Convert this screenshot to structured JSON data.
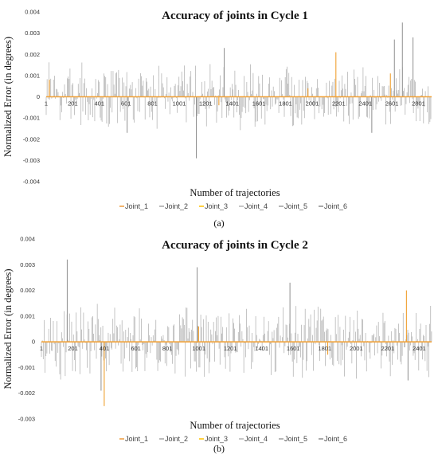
{
  "chart_data": [
    {
      "type": "line",
      "caption": "(a)",
      "title": "Accuracy of joints in Cycle 1",
      "xlabel": "Number of trajectories",
      "ylabel": "Normalized Error (in degrees)",
      "ylim": [
        -0.004,
        0.004
      ],
      "yticks": [
        0.004,
        0.003,
        0.002,
        0.001,
        0,
        -0.001,
        -0.002,
        -0.003,
        -0.004
      ],
      "ytick_labels": [
        "0.004",
        "0.003",
        "0.002",
        "0.001",
        "0",
        "-0.001",
        "-0.002",
        "-0.003",
        "-0.004"
      ],
      "xlim": [
        1,
        2900
      ],
      "xticks": [
        1,
        201,
        401,
        601,
        801,
        1001,
        1201,
        1401,
        1601,
        1801,
        2001,
        2201,
        2401,
        2601,
        2801
      ],
      "xtick_labels": [
        "1",
        "201",
        "401",
        "601",
        "801",
        "1001",
        "1201",
        "1401",
        "1601",
        "1801",
        "2001",
        "2201",
        "2401",
        "2601",
        "2801"
      ],
      "noise_amplitude": 0.0017,
      "series": [
        {
          "name": "Joint_1",
          "color": "#ed9b3a"
        },
        {
          "name": "Joint_2",
          "color": "#a6a6a6"
        },
        {
          "name": "Joint_3",
          "color": "#ffc000"
        },
        {
          "name": "Joint_4",
          "color": "#b4b4b4"
        },
        {
          "name": "Joint_5",
          "color": "#9d9d9d"
        },
        {
          "name": "Joint_6",
          "color": "#8c8c8c"
        }
      ],
      "gray_spikes": [
        {
          "x": 1130,
          "y": -0.0029
        },
        {
          "x": 1340,
          "y": 0.0023
        },
        {
          "x": 2620,
          "y": 0.0027
        },
        {
          "x": 2680,
          "y": 0.0035
        },
        {
          "x": 2760,
          "y": 0.0028
        },
        {
          "x": 610,
          "y": -0.0017
        },
        {
          "x": 2450,
          "y": -0.0017
        }
      ],
      "orange_spikes": [
        {
          "x": 25,
          "y": 0.0008
        },
        {
          "x": 2180,
          "y": 0.0021
        },
        {
          "x": 2590,
          "y": 0.0011
        },
        {
          "x": 1300,
          "y": -0.0004
        },
        {
          "x": 1970,
          "y": 0.0004
        }
      ]
    },
    {
      "type": "line",
      "caption": "(b)",
      "title": "Accuracy of joints in Cycle 2",
      "xlabel": "Number of trajectories",
      "ylabel": "Normalized Error (in degrees)",
      "ylim": [
        -0.003,
        0.004
      ],
      "yticks": [
        0.004,
        0.003,
        0.002,
        0.001,
        0,
        -0.001,
        -0.002,
        -0.003
      ],
      "ytick_labels": [
        "0.004",
        "0.003",
        "0.002",
        "0.001",
        "0",
        "-0.001",
        "-0.002",
        "-0.003"
      ],
      "xlim": [
        1,
        2480
      ],
      "xticks": [
        1,
        201,
        401,
        601,
        801,
        1001,
        1201,
        1401,
        1601,
        1801,
        2001,
        2201,
        2401
      ],
      "xtick_labels": [
        "1",
        "201",
        "401",
        "601",
        "801",
        "1001",
        "1201",
        "1401",
        "1601",
        "1801",
        "2001",
        "2201",
        "2401"
      ],
      "noise_amplitude": 0.0016,
      "series": [
        {
          "name": "Joint_1",
          "color": "#ed9b3a"
        },
        {
          "name": "Joint_2",
          "color": "#a6a6a6"
        },
        {
          "name": "Joint_3",
          "color": "#ffc000"
        },
        {
          "name": "Joint_4",
          "color": "#b4b4b4"
        },
        {
          "name": "Joint_5",
          "color": "#9d9d9d"
        },
        {
          "name": "Joint_6",
          "color": "#8c8c8c"
        }
      ],
      "gray_spikes": [
        {
          "x": 165,
          "y": 0.0032
        },
        {
          "x": 990,
          "y": 0.0029
        },
        {
          "x": 1580,
          "y": 0.0023
        },
        {
          "x": 380,
          "y": -0.0019
        },
        {
          "x": 2330,
          "y": -0.0015
        }
      ],
      "orange_spikes": [
        {
          "x": 400,
          "y": -0.0025
        },
        {
          "x": 2320,
          "y": 0.002
        },
        {
          "x": 1000,
          "y": 0.0006
        },
        {
          "x": 1820,
          "y": -0.0005
        }
      ]
    }
  ]
}
